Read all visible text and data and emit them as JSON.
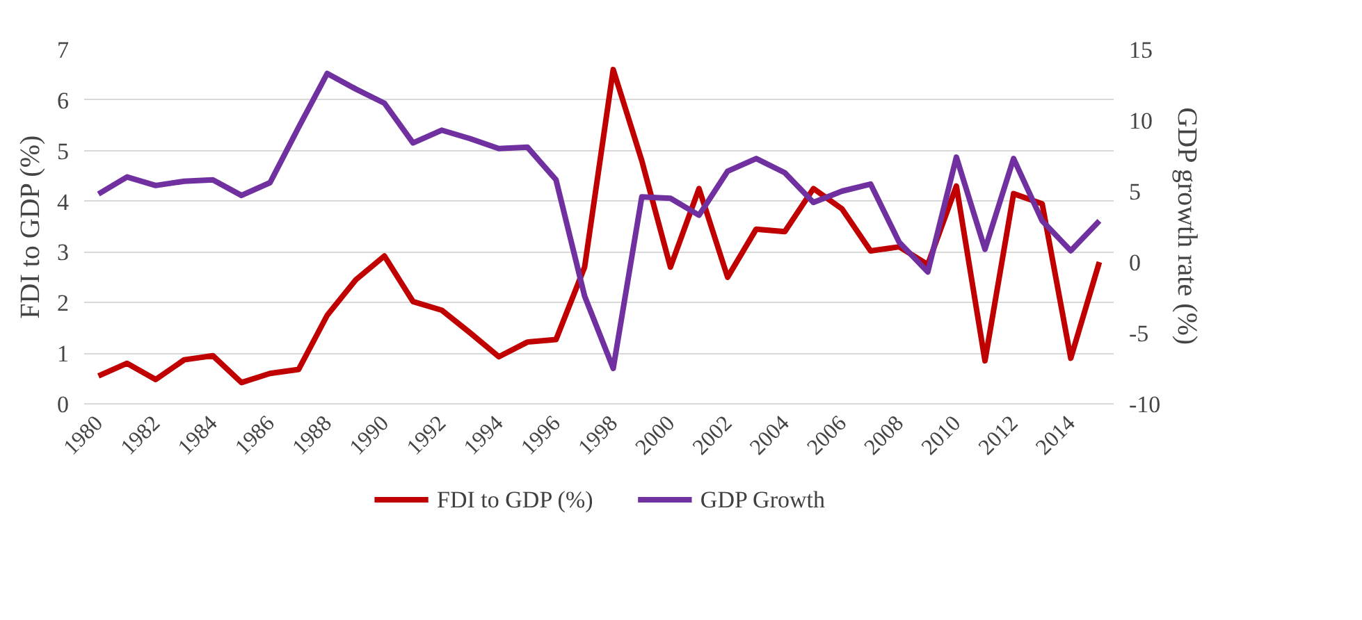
{
  "chart_data": {
    "type": "line",
    "ylabel": "FDI to GDP (%)",
    "y2label": "GDP growth rate (%)",
    "categories": [
      "1980",
      null,
      "1982",
      null,
      "1984",
      null,
      "1986",
      null,
      "1988",
      null,
      "1990",
      null,
      "1992",
      null,
      "1994",
      null,
      "1996",
      null,
      "1998",
      null,
      "2000",
      null,
      "2002",
      null,
      "2004",
      null,
      "2006",
      null,
      "2008",
      null,
      "2010",
      null,
      "2012",
      null,
      "2014",
      null
    ],
    "series": [
      {
        "name": "FDI to GDP (%)",
        "color": "#c00000",
        "values": [
          0.55,
          0.8,
          0.48,
          0.87,
          0.95,
          0.42,
          0.6,
          0.68,
          1.75,
          2.45,
          2.92,
          2.02,
          1.85,
          1.4,
          0.93,
          1.22,
          1.27,
          2.7,
          6.6,
          4.8,
          2.7,
          4.25,
          2.5,
          3.45,
          3.4,
          4.25,
          3.85,
          3.02,
          3.1,
          2.75,
          4.3,
          0.85,
          4.15,
          3.95,
          0.9,
          2.8
        ]
      },
      {
        "name": "GDP Growth",
        "color": "#7030a0",
        "axis": "y2",
        "values": [
          4.8,
          6.0,
          5.4,
          5.7,
          5.8,
          4.7,
          5.6,
          9.5,
          13.3,
          12.2,
          11.2,
          8.4,
          9.3,
          8.7,
          8.0,
          8.1,
          5.8,
          -2.4,
          -7.5,
          4.6,
          4.5,
          3.3,
          6.4,
          7.3,
          6.3,
          4.2,
          5.0,
          5.5,
          1.4,
          -0.7,
          7.4,
          0.9,
          7.3,
          2.9,
          0.8,
          2.9
        ]
      }
    ],
    "ylim": [
      0,
      7
    ],
    "yticks": [
      0,
      1,
      2,
      3,
      4,
      5,
      6,
      7
    ],
    "y2lim": [
      -10,
      15
    ],
    "y2ticks": [
      -10,
      -5,
      0,
      5,
      10,
      15
    ],
    "grid": "y",
    "legend": "bottom",
    "marker": "none",
    "line_style": "solid"
  }
}
